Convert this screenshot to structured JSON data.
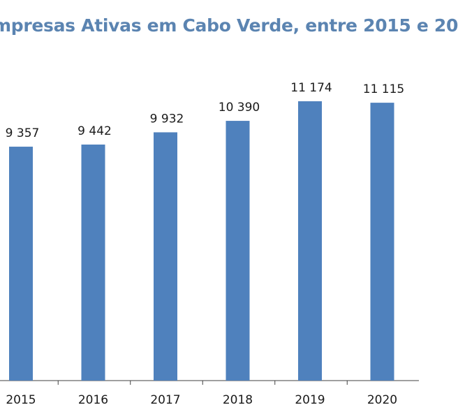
{
  "chart_data": {
    "type": "bar",
    "title": "mpresas Ativas em Cabo Verde, entre 2015  e 20",
    "categories": [
      "2015",
      "2016",
      "2017",
      "2018",
      "2019",
      "2020"
    ],
    "values": [
      9357,
      9442,
      9932,
      10390,
      11174,
      11115
    ],
    "data_labels": [
      "9 357",
      "9 442",
      "9 932",
      "10 390",
      "11 174",
      "11 115"
    ],
    "xlabel": "",
    "ylabel": "",
    "ylim": [
      0,
      11174
    ],
    "grid": false,
    "legend": "none",
    "bar_color": "#4f81bd",
    "axis_color": "#404040"
  }
}
